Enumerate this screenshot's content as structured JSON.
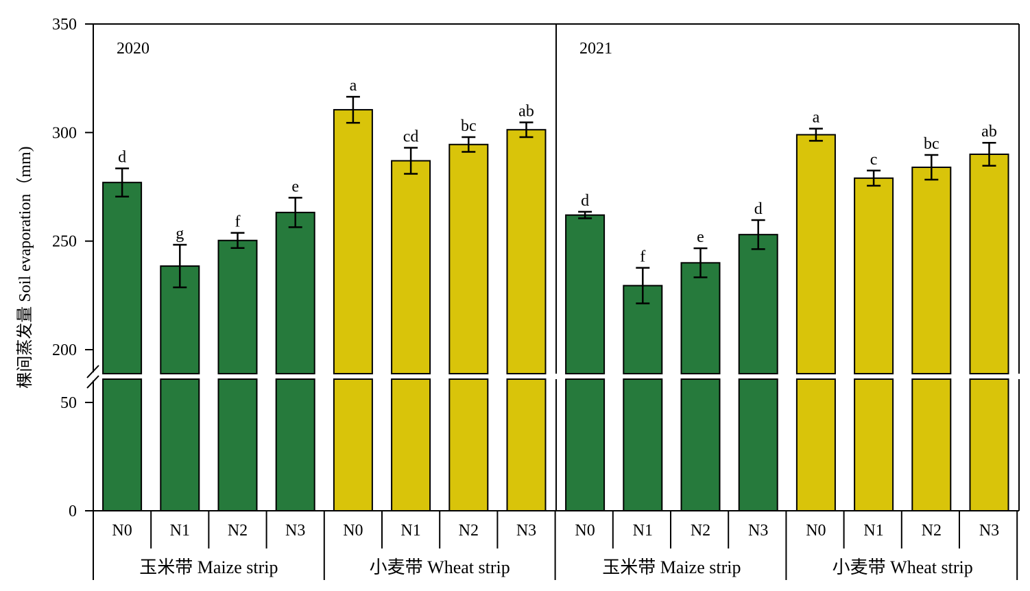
{
  "chart_data": {
    "type": "bar",
    "ylabel": "棵间蒸发量 Soil evaporation（mm)",
    "y_axis": {
      "broken": true,
      "lower_range": [
        0,
        60
      ],
      "upper_range": [
        200,
        350
      ],
      "ticks": [
        {
          "value": 0,
          "label": "0"
        },
        {
          "value": 50,
          "label": "50"
        },
        {
          "value": 200,
          "label": "200"
        },
        {
          "value": 250,
          "label": "250"
        },
        {
          "value": 300,
          "label": "300"
        },
        {
          "value": 350,
          "label": "350"
        }
      ]
    },
    "colors": {
      "maize": "#267a3c",
      "wheat": "#d9c40a"
    },
    "panels": [
      {
        "year": "2020",
        "groups": [
          {
            "label": "玉米带 Maize strip",
            "crop": "maize",
            "bars": [
              {
                "x": "N0",
                "value": 277,
                "error": 6.5,
                "letter": "d"
              },
              {
                "x": "N1",
                "value": 238.5,
                "error": 9.8,
                "letter": "g"
              },
              {
                "x": "N2",
                "value": 250.3,
                "error": 3.5,
                "letter": "f"
              },
              {
                "x": "N3",
                "value": 263.2,
                "error": 6.8,
                "letter": "e"
              }
            ]
          },
          {
            "label": "小麦带 Wheat strip",
            "crop": "wheat",
            "bars": [
              {
                "x": "N0",
                "value": 310.5,
                "error": 6.0,
                "letter": "a"
              },
              {
                "x": "N1",
                "value": 287,
                "error": 6.0,
                "letter": "cd"
              },
              {
                "x": "N2",
                "value": 294.5,
                "error": 3.4,
                "letter": "bc"
              },
              {
                "x": "N3",
                "value": 301.3,
                "error": 3.4,
                "letter": "ab"
              }
            ]
          }
        ]
      },
      {
        "year": "2021",
        "groups": [
          {
            "label": "玉米带 Maize strip",
            "crop": "maize",
            "bars": [
              {
                "x": "N0",
                "value": 262,
                "error": 1.5,
                "letter": "d"
              },
              {
                "x": "N1",
                "value": 229.5,
                "error": 8.2,
                "letter": "f"
              },
              {
                "x": "N2",
                "value": 240,
                "error": 6.7,
                "letter": "e"
              },
              {
                "x": "N3",
                "value": 253,
                "error": 6.7,
                "letter": "d"
              }
            ]
          },
          {
            "label": "小麦带 Wheat strip",
            "crop": "wheat",
            "bars": [
              {
                "x": "N0",
                "value": 299,
                "error": 2.8,
                "letter": "a"
              },
              {
                "x": "N1",
                "value": 279,
                "error": 3.5,
                "letter": "c"
              },
              {
                "x": "N2",
                "value": 284,
                "error": 5.7,
                "letter": "bc"
              },
              {
                "x": "N3",
                "value": 290,
                "error": 5.3,
                "letter": "ab"
              }
            ]
          }
        ]
      }
    ]
  }
}
